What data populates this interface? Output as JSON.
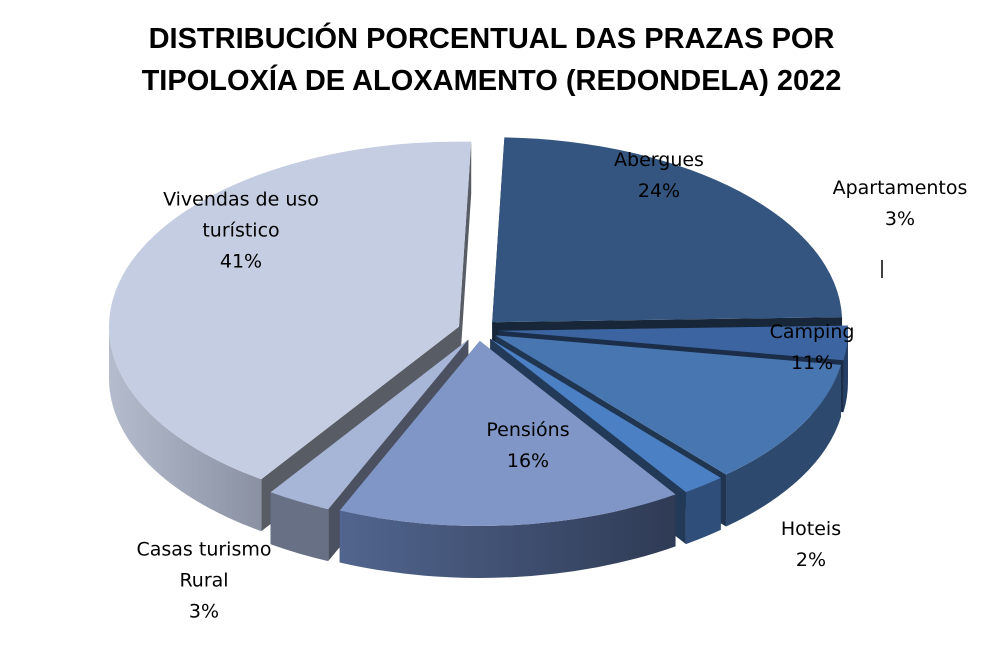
{
  "chart_data": {
    "type": "pie",
    "title_lines": [
      "DISTRIBUCIÓN PORCENTUAL DAS PRAZAS POR",
      "TIPOLOXÍA DE ALOXAMENTO (REDONDELA) 2022"
    ],
    "slices": [
      {
        "label_lines": [
          "Abergues"
        ],
        "value": 24,
        "value_label": "24%",
        "color": "#34557f"
      },
      {
        "label_lines": [
          "Apartamentos"
        ],
        "value": 3,
        "value_label": "3%",
        "color": "#3b64a0"
      },
      {
        "label_lines": [
          "Camping"
        ],
        "value": 11,
        "value_label": "11%",
        "color": "#4876b1"
      },
      {
        "label_lines": [
          "Hoteis"
        ],
        "value": 2,
        "value_label": "2%",
        "color": "#4b80c4"
      },
      {
        "label_lines": [
          "Pensións"
        ],
        "value": 16,
        "value_label": "16%",
        "color": "#8096c6"
      },
      {
        "label_lines": [
          "Casas turismo",
          "Rural"
        ],
        "value": 3,
        "value_label": "3%",
        "color": "#a7b5d6"
      },
      {
        "label_lines": [
          "Vivendas de uso",
          "turístico"
        ],
        "value": 41,
        "value_label": "41%",
        "color": "#c4cde1"
      }
    ],
    "exploded": true,
    "three_d": true,
    "legend": "none"
  }
}
